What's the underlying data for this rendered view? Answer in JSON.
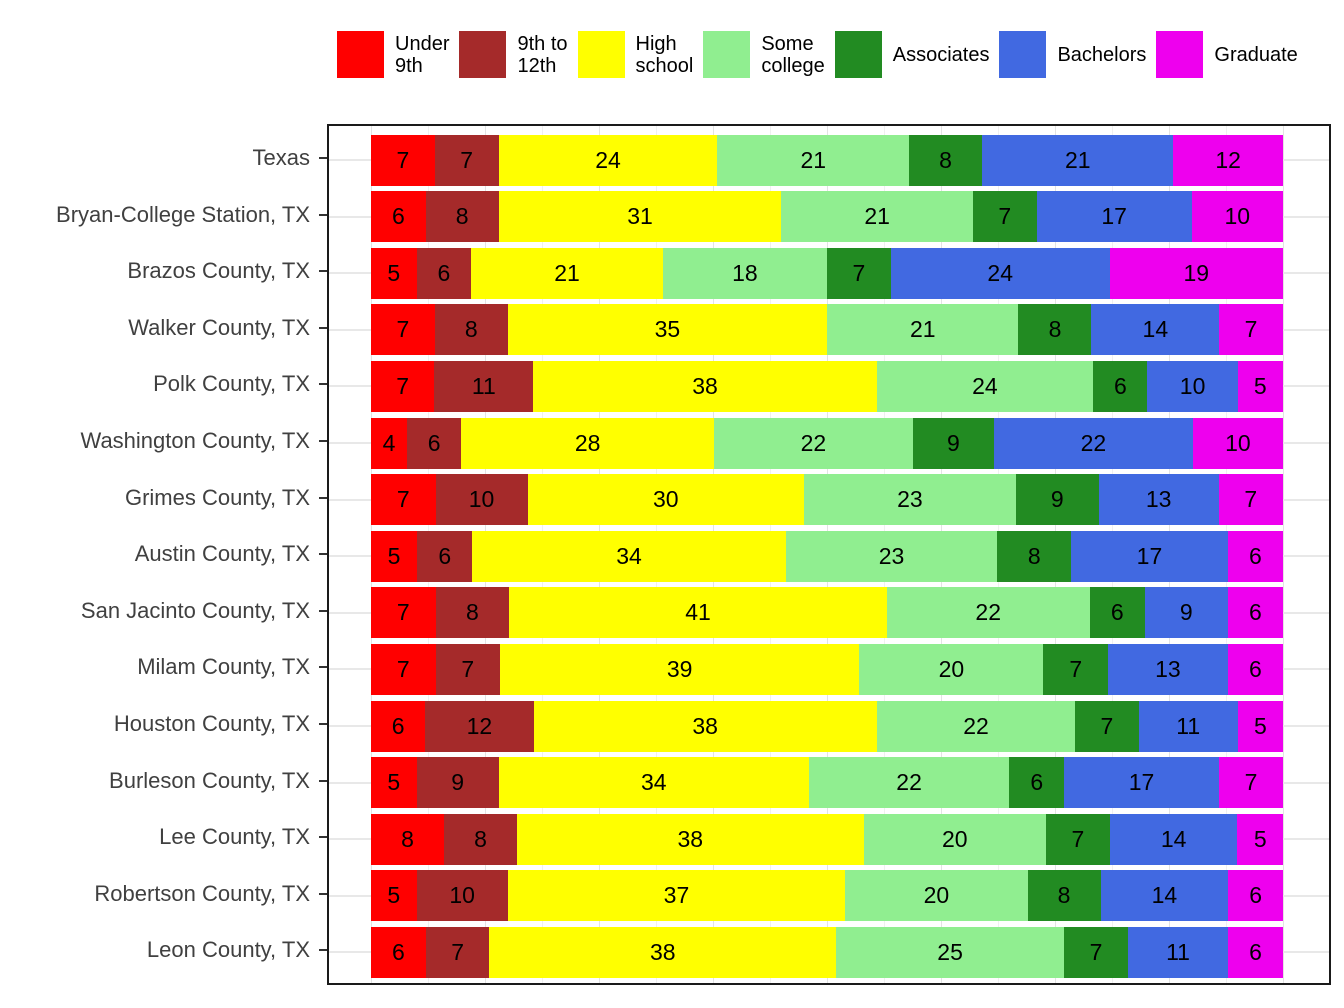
{
  "chart_data": {
    "type": "bar",
    "orientation": "horizontal",
    "stacked": true,
    "position": "fill",
    "title": "",
    "xlabel": "",
    "ylabel": "",
    "xlim": [
      0,
      100
    ],
    "grid": "on",
    "legend_position": "top",
    "value_unit": "percent",
    "categories": [
      "Texas",
      "Bryan-College Station, TX",
      "Brazos County, TX",
      "Walker County, TX",
      "Polk County, TX",
      "Washington County, TX",
      "Grimes County, TX",
      "Austin County, TX",
      "San Jacinto County, TX",
      "Milam County, TX",
      "Houston County, TX",
      "Burleson County, TX",
      "Lee County, TX",
      "Robertson County, TX",
      "Leon County, TX"
    ],
    "series": [
      {
        "name": "Under 9th",
        "legend_label": "Under\n9th",
        "color": "#FF0000",
        "values": [
          7,
          6,
          5,
          7,
          7,
          4,
          7,
          5,
          7,
          7,
          6,
          5,
          8,
          5,
          6
        ]
      },
      {
        "name": "9th to 12th",
        "legend_label": "9th to\n12th",
        "color": "#A52A2A",
        "values": [
          7,
          8,
          6,
          8,
          11,
          6,
          10,
          6,
          8,
          7,
          12,
          9,
          8,
          10,
          7
        ]
      },
      {
        "name": "High school",
        "legend_label": "High\nschool",
        "color": "#FFFF00",
        "values": [
          24,
          31,
          21,
          35,
          38,
          28,
          30,
          34,
          41,
          39,
          38,
          34,
          38,
          37,
          38
        ]
      },
      {
        "name": "Some college",
        "legend_label": "Some\ncollege",
        "color": "#90EE90",
        "values": [
          21,
          21,
          18,
          21,
          24,
          22,
          23,
          23,
          22,
          20,
          22,
          22,
          20,
          20,
          25
        ]
      },
      {
        "name": "Associates",
        "legend_label": "Associates",
        "color": "#228B22",
        "values": [
          8,
          7,
          7,
          8,
          6,
          9,
          9,
          8,
          6,
          7,
          7,
          6,
          7,
          8,
          7
        ]
      },
      {
        "name": "Bachelors",
        "legend_label": "Bachelors",
        "color": "#4169E1",
        "values": [
          21,
          17,
          24,
          14,
          10,
          22,
          13,
          17,
          9,
          13,
          11,
          17,
          14,
          14,
          11
        ]
      },
      {
        "name": "Graduate",
        "legend_label": "Graduate",
        "color": "#EE00EE",
        "values": [
          12,
          10,
          19,
          7,
          5,
          10,
          7,
          6,
          6,
          6,
          5,
          7,
          5,
          6,
          6
        ]
      }
    ]
  },
  "style_colors": {
    "panel_border": "#1a1a1a",
    "grid_major": "#e3e3e3",
    "grid_minor": "#f0f0f0",
    "axis_text": "#404040",
    "bar_label_text": "#000000"
  }
}
